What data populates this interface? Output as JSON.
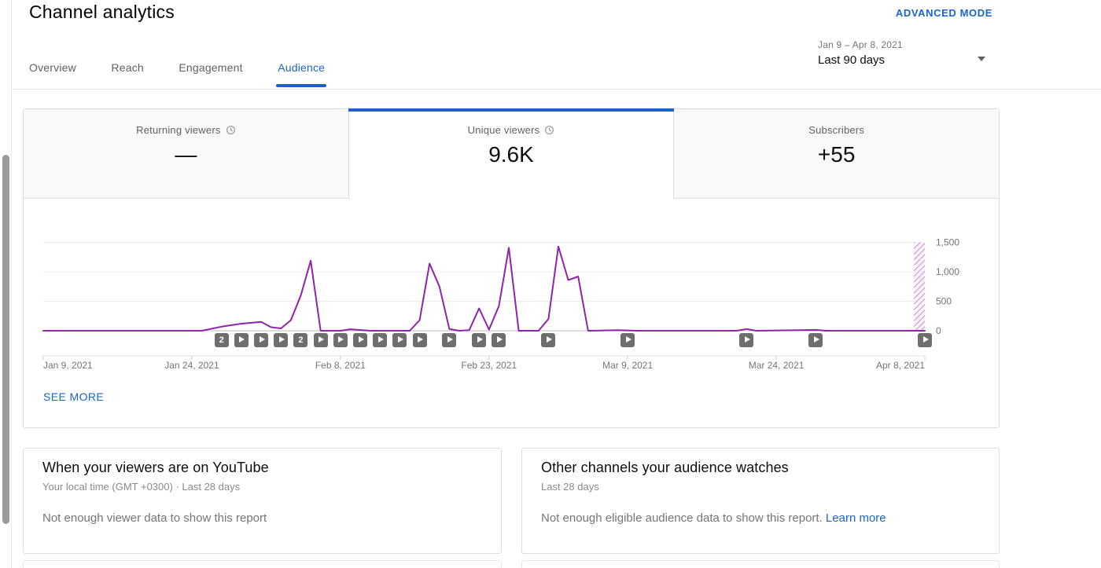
{
  "header": {
    "title": "Channel analytics",
    "advanced_mode_label": "ADVANCED MODE"
  },
  "tabs": [
    {
      "label": "Overview",
      "active": false
    },
    {
      "label": "Reach",
      "active": false
    },
    {
      "label": "Engagement",
      "active": false
    },
    {
      "label": "Audience",
      "active": true
    }
  ],
  "date_picker": {
    "range": "Jan 9 – Apr 8, 2021",
    "preset": "Last 90 days"
  },
  "metric_cards": [
    {
      "label": "Returning viewers",
      "value": "—",
      "info_icon": "clock-icon",
      "selected": false
    },
    {
      "label": "Unique viewers",
      "value": "9.6K",
      "info_icon": "clock-icon",
      "selected": true
    },
    {
      "label": "Subscribers",
      "value": "+55",
      "info_icon": null,
      "selected": false
    }
  ],
  "chart_data": {
    "type": "line",
    "metric": "Unique viewers",
    "x_domain_days": [
      0,
      89
    ],
    "ylim": [
      0,
      1500
    ],
    "yticks": [
      0,
      500,
      1000,
      1500
    ],
    "grid": true,
    "legend": false,
    "xticks": [
      {
        "day": 0,
        "label": "Jan 9, 2021"
      },
      {
        "day": 15,
        "label": "Jan 24, 2021"
      },
      {
        "day": 30,
        "label": "Feb 8, 2021"
      },
      {
        "day": 45,
        "label": "Feb 23, 2021"
      },
      {
        "day": 59,
        "label": "Mar 9, 2021"
      },
      {
        "day": 74,
        "label": "Mar 24, 2021"
      },
      {
        "day": 89,
        "label": "Apr 8, 2021"
      }
    ],
    "series": [
      {
        "name": "Unique viewers",
        "points": [
          [
            0,
            0
          ],
          [
            16,
            0
          ],
          [
            18,
            70
          ],
          [
            20,
            120
          ],
          [
            22,
            150
          ],
          [
            23,
            60
          ],
          [
            24,
            40
          ],
          [
            25,
            180
          ],
          [
            26,
            600
          ],
          [
            27,
            1190
          ],
          [
            28,
            0
          ],
          [
            30,
            0
          ],
          [
            31,
            25
          ],
          [
            33,
            0
          ],
          [
            37,
            0
          ],
          [
            38,
            180
          ],
          [
            39,
            1140
          ],
          [
            40,
            750
          ],
          [
            41,
            30
          ],
          [
            42,
            0
          ],
          [
            43,
            10
          ],
          [
            44,
            380
          ],
          [
            45,
            20
          ],
          [
            46,
            420
          ],
          [
            47,
            1410
          ],
          [
            48,
            0
          ],
          [
            50,
            0
          ],
          [
            51,
            200
          ],
          [
            52,
            1430
          ],
          [
            53,
            860
          ],
          [
            54,
            920
          ],
          [
            55,
            0
          ],
          [
            58,
            10
          ],
          [
            60,
            0
          ],
          [
            70,
            0
          ],
          [
            71,
            30
          ],
          [
            72,
            0
          ],
          [
            78,
            15
          ],
          [
            79,
            0
          ],
          [
            89,
            0
          ]
        ]
      }
    ],
    "video_markers": [
      {
        "day": 18,
        "badge": "2"
      },
      {
        "day": 20
      },
      {
        "day": 22
      },
      {
        "day": 24
      },
      {
        "day": 26,
        "badge": "2"
      },
      {
        "day": 28
      },
      {
        "day": 30
      },
      {
        "day": 32
      },
      {
        "day": 34
      },
      {
        "day": 36
      },
      {
        "day": 38
      },
      {
        "day": 41
      },
      {
        "day": 44
      },
      {
        "day": 46
      },
      {
        "day": 51
      },
      {
        "day": 59
      },
      {
        "day": 71
      },
      {
        "day": 78
      },
      {
        "day": 89
      }
    ],
    "incomplete_data_band": {
      "from_day": 87.9,
      "to_day": 89
    }
  },
  "see_more_label": "SEE MORE",
  "bottom_cards": {
    "viewers_on_youtube": {
      "title": "When your viewers are on YouTube",
      "subtitle": "Your local time (GMT +0300) · Last 28 days",
      "body": "Not enough viewer data to show this report"
    },
    "other_channels": {
      "title": "Other channels your audience watches",
      "subtitle": "Last 28 days",
      "body": "Not enough eligible audience data to show this report.",
      "link_label": "Learn more"
    }
  },
  "colors": {
    "accent_blue": "#1c62c5",
    "link_blue": "#1a66c9",
    "line_purple": "#8e24aa",
    "marker_gray": "#6e6e6e"
  }
}
